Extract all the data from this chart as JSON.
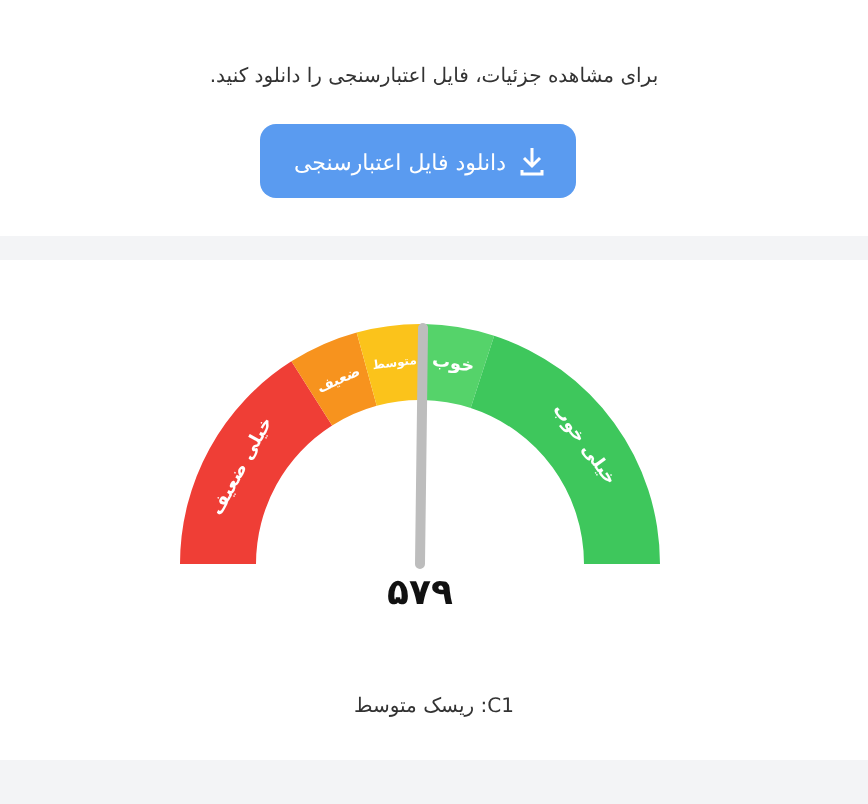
{
  "chart_data": {
    "type": "donut",
    "categories": [
      "خیلی ضعیف",
      "ضعیف",
      "متوسط",
      "خوب",
      "خیلی خوب"
    ],
    "values": [
      32,
      9.5,
      9,
      9.5,
      40
    ],
    "colors": [
      "#ef3e36",
      "#f7931e",
      "#fbc31b",
      "#55d36a",
      "#3ec75c"
    ],
    "needle": "متوسط",
    "annotations": [
      "برای مشاهده جزئیات، فایل اعتبارسنجی را دانلود کنید.",
      "دانلود فایل اعتبارسنجی",
      "۵۷۹",
      "C1: ریسک متوسط"
    ]
  }
}
